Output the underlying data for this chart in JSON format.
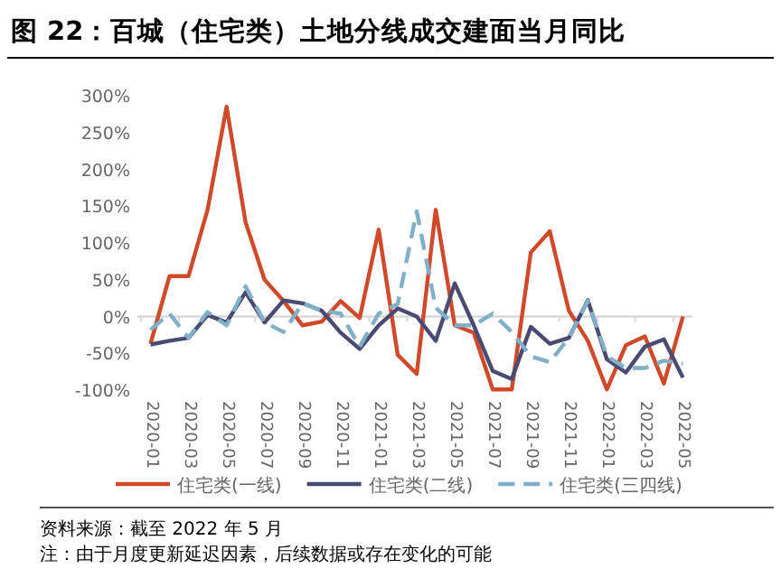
{
  "chart_data": {
    "type": "line",
    "title": "图 22：百城（住宅类）土地分线成交建面当月同比",
    "categories": [
      "2020-01",
      null,
      "2020-03",
      null,
      "2020-05",
      null,
      "2020-07",
      null,
      "2020-09",
      null,
      "2020-11",
      null,
      "2021-01",
      null,
      "2021-03",
      null,
      "2021-05",
      null,
      "2021-07",
      null,
      "2021-09",
      null,
      "2021-11",
      null,
      "2022-01",
      null,
      "2022-03",
      null,
      "2022-05"
    ],
    "series": [
      {
        "name": "住宅类(一线)",
        "color": "#d04a2a",
        "line_style": "solid",
        "values": [
          -37,
          55,
          55,
          145,
          285,
          128,
          50,
          21,
          -12,
          -7,
          21,
          -2,
          118,
          -52,
          -78,
          145,
          -12,
          -22,
          -99,
          -99,
          87,
          116,
          8,
          -33,
          -99,
          -39,
          -27,
          -91,
          0
        ]
      },
      {
        "name": "住宅类(二线)",
        "color": "#4a4a72",
        "line_style": "solid",
        "values": [
          -38,
          -33,
          -29,
          2,
          -8,
          33,
          -8,
          22,
          18,
          8,
          -22,
          -44,
          -12,
          11,
          0,
          -33,
          45,
          -12,
          -74,
          -85,
          -14,
          -37,
          -29,
          22,
          -58,
          -76,
          -41,
          -31,
          -83
        ]
      },
      {
        "name": "住宅类(三四线)",
        "color": "#7fb0c8",
        "line_style": "dashed",
        "values": [
          -18,
          4,
          -29,
          6,
          -12,
          41,
          -8,
          -21,
          18,
          8,
          4,
          -41,
          4,
          17,
          143,
          12,
          -12,
          -12,
          4,
          -21,
          -54,
          -62,
          -29,
          21,
          -54,
          -70,
          -70,
          -60,
          -64
        ]
      }
    ],
    "ylim": [
      -100,
      300
    ],
    "yticks": [
      {
        "value": -100,
        "label": "-100%"
      },
      {
        "value": -50,
        "label": "-50%"
      },
      {
        "value": 0,
        "label": "0%"
      },
      {
        "value": 50,
        "label": "50%"
      },
      {
        "value": 100,
        "label": "100%"
      },
      {
        "value": 150,
        "label": "150%"
      },
      {
        "value": 200,
        "label": "200%"
      },
      {
        "value": 250,
        "label": "250%"
      },
      {
        "value": 300,
        "label": "300%"
      }
    ],
    "ref_lines": [
      {
        "axis": "y",
        "value": 0,
        "color": "#d9d9d9"
      }
    ],
    "grid": false,
    "legend": "bottom",
    "marker": "none",
    "annotations": [
      "资料来源：截至 2022 年 5 月",
      "注：由于月度更新延迟因素，后续数据或存在变化的可能"
    ]
  }
}
